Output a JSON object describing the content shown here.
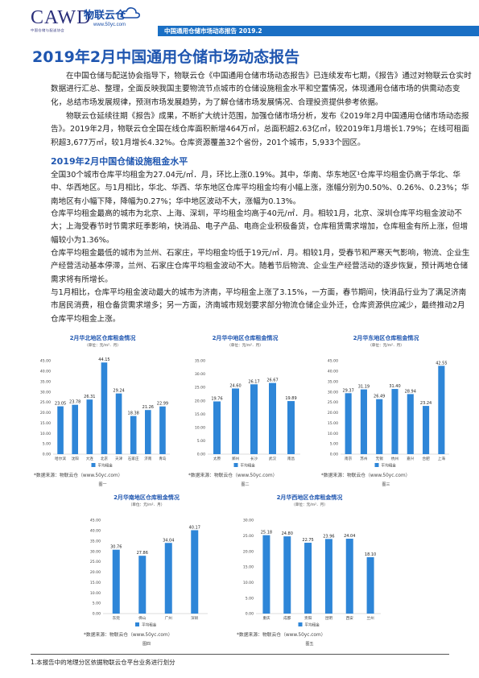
{
  "header": {
    "logo_text": "CAWD",
    "logo_sub": "中国仓储与配送协会",
    "brand": "物联云仓",
    "brand_url": "www.50yc.com",
    "banner": "中国通用仓储市场动态报告 2019.2"
  },
  "title": "2019年2月中国通用仓储市场动态报告",
  "paragraphs": [
    "在中国仓储与配送协会指导下，物联云仓《中国通用仓储市场动态报告》已连续发布七期，《报告》通过对物联云仓实时数据进行汇总、整理，全面反映我国主要物流节点城市的仓储设施租金水平和空置情况，体现通用仓储市场的供需动态变化，总结市场发展规律，预测市场发展趋势，为了解仓储市场发展情况、合理投资提供参考依据。",
    "物联云仓延续往期《报告》成果，不断扩大统计范围，加强仓储市场分析，发布《2019年2月中国通用仓储市场动态报告》。2019年2月，物联云仓全国在线仓库面积新增464万㎡，总面积超2.63亿㎡，较2019年1月增长1.79%；在线可租面积超3,677万㎡，较1月增长4.32%。仓库资源覆盖32个省份，201个城市，5,933个园区。"
  ],
  "section_title": "2019年2月中国仓储设施租金水平",
  "section_paragraphs": [
    "全国30个城市仓库平均租金为27.04元/㎡．月，环比上涨0.19%。其中，华南、华东地区¹仓库平均租金仍高于华北、华中、华西地区。与1月相比，华北、华西、华东地区仓库平均租金均有小幅上涨，涨幅分别为0.50%、0.26%、0.23%；华南地区有小幅下降，降幅为0.27%；华中地区波动不大，涨幅为0.13%。",
    "仓库平均租金最高的城市为北京、上海、深圳，平均租金均高于40元/㎡．月。相较1月，北京、深圳仓库平均租金波动不大；上海受春节时节需求旺季影响，快消品、电子产品、电商企业积极备货，仓库租赁需求增加，仓库租金有所上涨，但增幅较小为1.36%。",
    "仓库平均租金最低的城市为兰州、石家庄，平均租金均低于19元/㎡．月。相较1月，受春节和严寒天气影响，物流、企业生产经营活动基本停滞，兰州、石家庄仓库平均租金波动不大。随着节后物流、企业生产经营活动的逐步恢复，预计两地仓储需求将有所增长。",
    "与1月相比，仓库平均租金波动最大的城市为济南，平均租金上涨了3.15%，一方面，春节期间，快消品行业为了满足济南市居民消费，租仓备货需求增多；另一方面，济南城市规划要求部分物流仓储企业外迁，仓库资源供应减少，最终推动2月仓库平均租金上涨。"
  ],
  "chart_data": [
    {
      "type": "bar",
      "title": "2月华北地区仓库租金情况",
      "unit": "（单位：元/m²．月）",
      "categories": [
        "哈尔滨",
        "沈阳",
        "大连",
        "北京",
        "天津",
        "石家庄",
        "济南",
        "青岛"
      ],
      "values": [
        23.05,
        23.78,
        26.31,
        44.15,
        29.24,
        18.38,
        21.26,
        22.99
      ],
      "ylim": [
        0,
        45
      ],
      "yticks": [
        "0.00",
        "5.00",
        "10.00",
        "15.00",
        "20.00",
        "25.00",
        "30.00",
        "35.00",
        "40.00",
        "45.00"
      ],
      "legend": "平均租金",
      "source": "*数据来源：物联云仓（www.50yc.com）",
      "figure": "图一",
      "color": "#2e86d8"
    },
    {
      "type": "bar",
      "title": "2月华中地区仓库租金情况",
      "unit": "（单位：元/m²．月）",
      "categories": [
        "太原",
        "郑州",
        "长沙",
        "武汉",
        "南昌"
      ],
      "values": [
        19.76,
        24.6,
        26.17,
        26.67,
        19.89
      ],
      "ylim": [
        0,
        35
      ],
      "yticks": [
        "0.00",
        "5.00",
        "10.00",
        "15.00",
        "20.00",
        "25.00",
        "30.00",
        "35.00"
      ],
      "legend": "平均租金",
      "source": "*数据来源：物联云仓（www.50yc.com）",
      "figure": "图二",
      "color": "#2e86d8"
    },
    {
      "type": "bar",
      "title": "2月华东地区仓库租金情况",
      "unit": "（单位：元/m²．月）",
      "categories": [
        "南京",
        "苏州",
        "无锡",
        "杭州",
        "嘉兴",
        "合肥",
        "上海"
      ],
      "values": [
        29.37,
        31.19,
        26.49,
        31.4,
        28.94,
        23.24,
        42.55
      ],
      "ylim": [
        0,
        45
      ],
      "yticks": [
        "0.00",
        "5.00",
        "10.00",
        "15.00",
        "20.00",
        "25.00",
        "30.00",
        "35.00",
        "40.00",
        "45.00"
      ],
      "legend": "平均租金",
      "source": "*数据来源：物联云仓（www.50yc.com）",
      "figure": "图三",
      "color": "#2e86d8"
    },
    {
      "type": "bar",
      "title": "2月华南地区仓库租金情况",
      "unit": "（单位：元/m²．月）",
      "categories": [
        "东莞",
        "佛山",
        "广州",
        "深圳"
      ],
      "values": [
        30.76,
        27.86,
        34.04,
        40.17
      ],
      "ylim": [
        0,
        45
      ],
      "yticks": [
        "0.00",
        "5.00",
        "10.00",
        "15.00",
        "20.00",
        "25.00",
        "30.00",
        "35.00",
        "40.00",
        "45.00"
      ],
      "legend": "平均租金",
      "source": "*数据来源：物联云仓（www.50yc.com）",
      "figure": "图四",
      "color": "#2e86d8"
    },
    {
      "type": "bar",
      "title": "2月华西地区仓库租金情况",
      "unit": "（单位：元/m²．月）",
      "categories": [
        "重庆",
        "成都",
        "贵阳",
        "昆明",
        "西安",
        "兰州"
      ],
      "values": [
        25.18,
        24.8,
        22.75,
        23.96,
        24.04,
        18.1
      ],
      "ylim": [
        0,
        30
      ],
      "yticks": [
        "0.00",
        "5.00",
        "10.00",
        "15.00",
        "20.00",
        "25.00",
        "30.00"
      ],
      "legend": "平均租金",
      "source": "*数据来源：物联云仓（www.50yc.com）",
      "figure": "图五",
      "color": "#2e86d8"
    }
  ],
  "footnote": "1.本报告中的地理分区依据物联云仓平台业务进行划分"
}
